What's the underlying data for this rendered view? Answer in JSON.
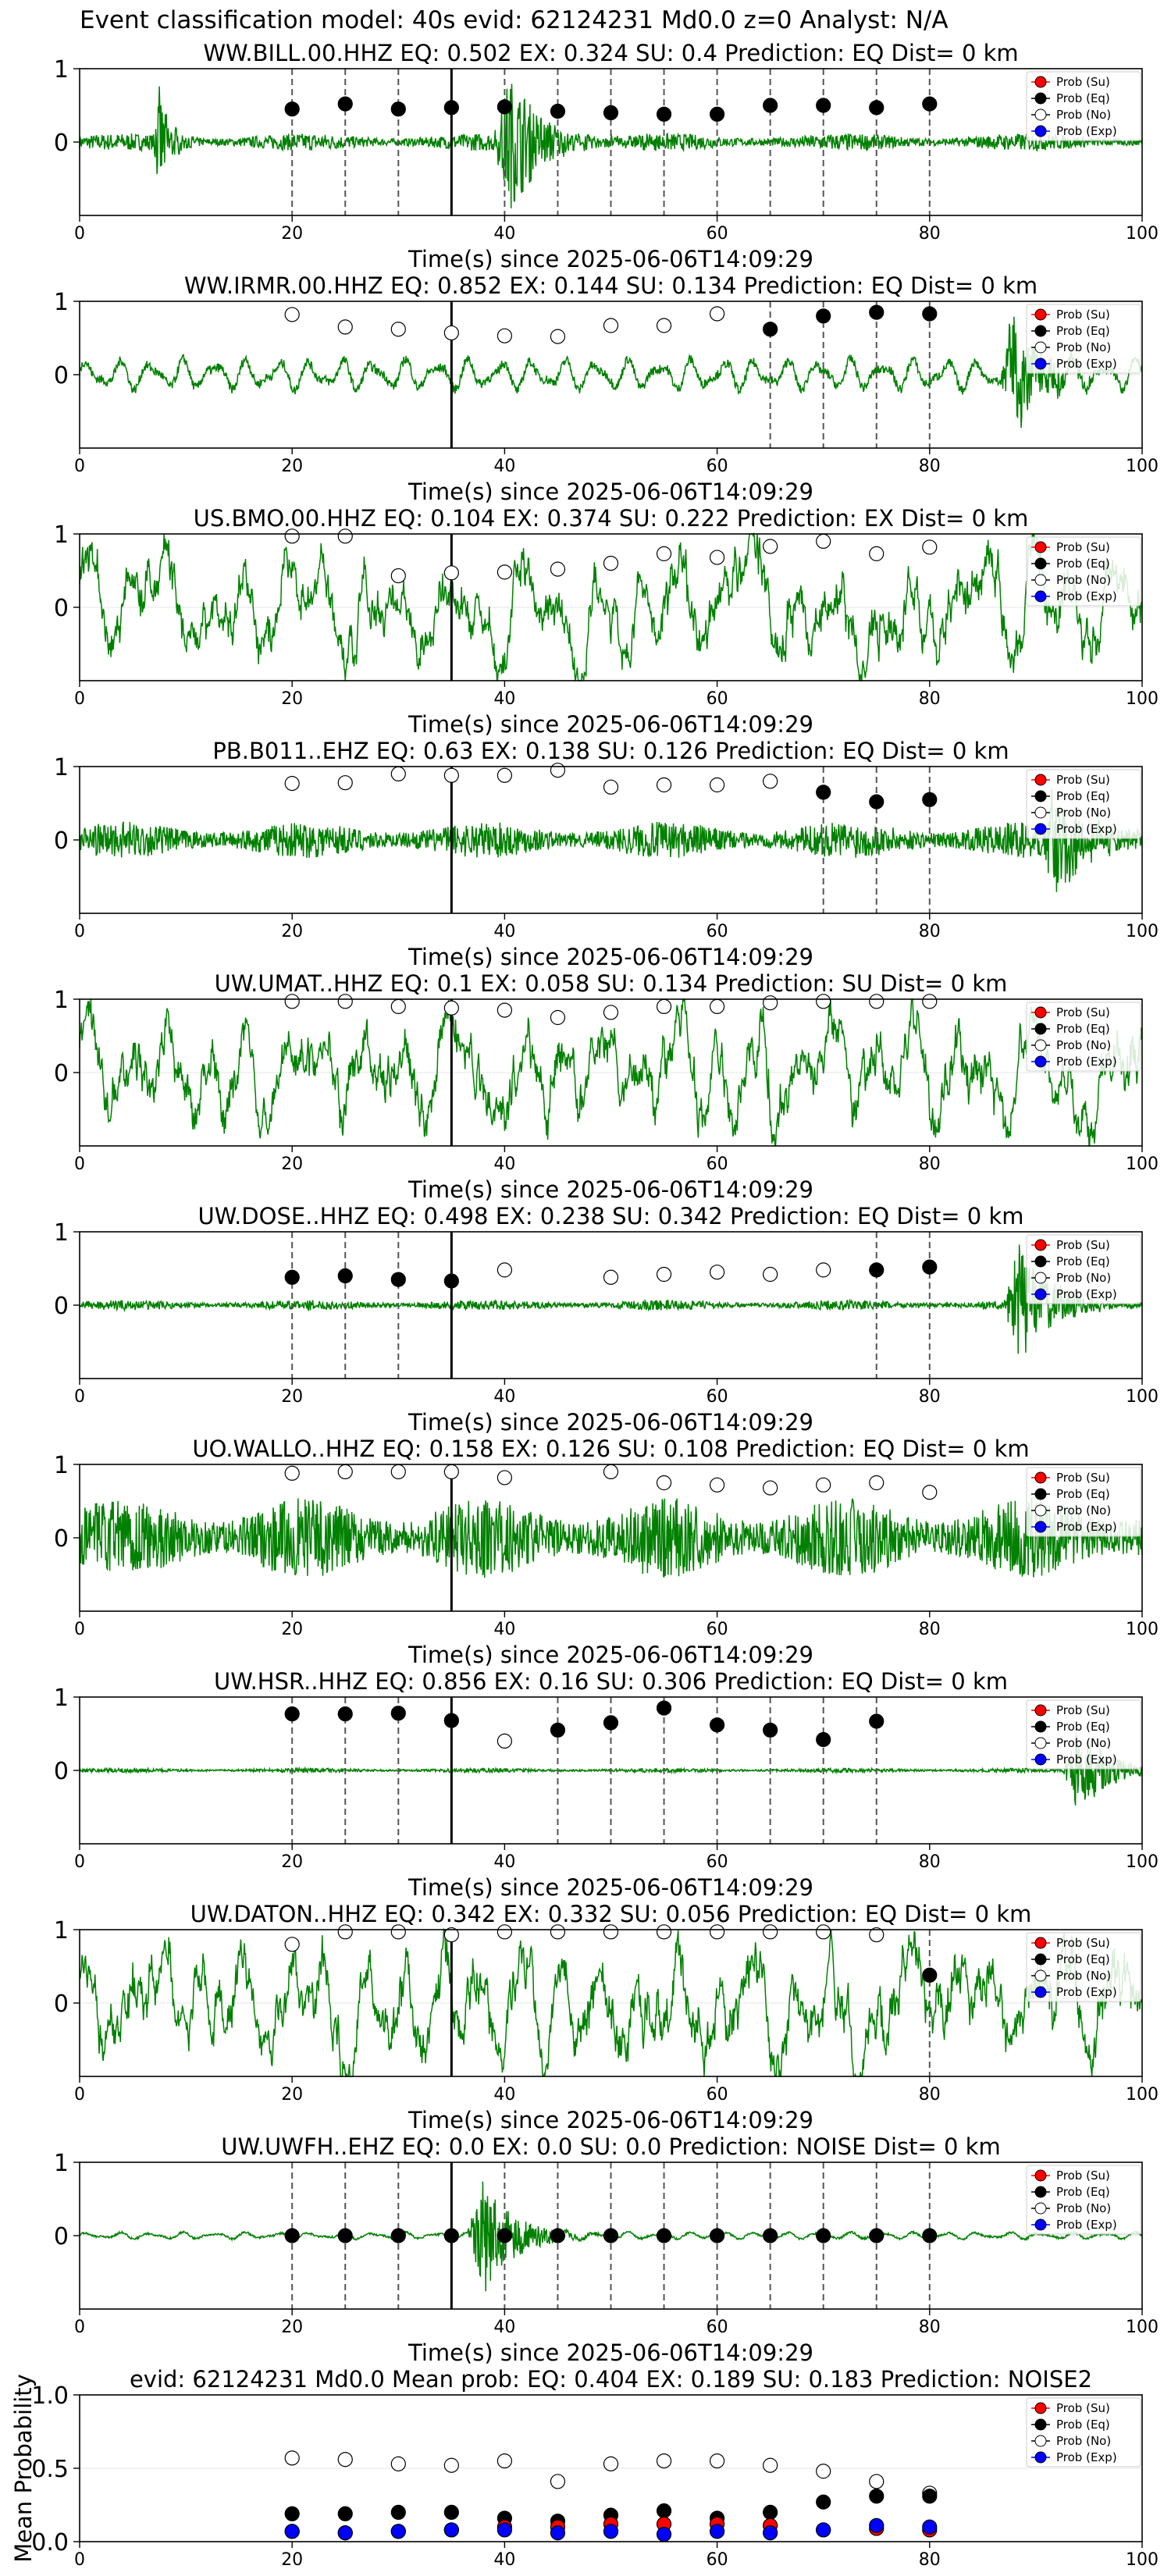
{
  "figure": {
    "title": "Event classification model: 40s evid: 62124231 Md0.0 z=0 Analyst: N/A"
  },
  "legend_labels": [
    "Prob (Su)",
    "Prob (Eq)",
    "Prob (No)",
    "Prob (Exp)"
  ],
  "colors": {
    "waveform": "#008000",
    "su": "#ff0000",
    "eq": "#000000",
    "no": "#ffffff",
    "exp": "#0000ff",
    "window_line": "#555555",
    "pick_line": "#000000"
  },
  "chart_data": [
    {
      "type": "line",
      "title": "WW.BILL.00.HHZ   EQ: 0.502  EX: 0.324  SU: 0.4   Prediction: EQ    Dist= 0 km",
      "xlabel": "Time(s) since 2025-06-06T14:09:29",
      "ylabel": "",
      "xlim": [
        0,
        100
      ],
      "ylim": [
        -1,
        1
      ],
      "xticks": [
        "0",
        "20",
        "40",
        "60",
        "80",
        "100"
      ],
      "yticks": [
        "1",
        "0"
      ],
      "legend": "top-right",
      "pick_time": 35,
      "windows": [
        20,
        25,
        30,
        35,
        40,
        45,
        50,
        55,
        60,
        65,
        70,
        75,
        80
      ],
      "marker": "eq",
      "probs": [
        0.45,
        0.52,
        0.45,
        0.47,
        0.48,
        0.42,
        0.4,
        0.38,
        0.38,
        0.5,
        0.5,
        0.47,
        0.52
      ],
      "trace": {
        "amp": 0.12,
        "burst_at": 40.5,
        "burst_amp": 0.95,
        "extra_burst": 7.5,
        "style": "hf"
      }
    },
    {
      "type": "line",
      "title": "WW.IRMR.00.HHZ   EQ: 0.852  EX: 0.144  SU: 0.134   Prediction: EQ    Dist= 0 km",
      "xlabel": "Time(s) since 2025-06-06T14:09:29",
      "ylabel": "",
      "xlim": [
        0,
        100
      ],
      "ylim": [
        -1,
        1
      ],
      "xticks": [
        "0",
        "20",
        "40",
        "60",
        "80",
        "100"
      ],
      "yticks": [
        "1",
        "0"
      ],
      "legend": "top-right",
      "pick_time": 35,
      "windows": [
        65,
        70,
        75,
        80
      ],
      "marker": "mixed",
      "probs": [
        0.82,
        0.65,
        0.62,
        0.57,
        0.53,
        0.52,
        0.67,
        0.67,
        0.83,
        0.62,
        0.8,
        0.85,
        0.83
      ],
      "marker_types": [
        "no",
        "no",
        "no",
        "no",
        "no",
        "no",
        "no",
        "no",
        "no",
        "eq",
        "eq",
        "eq",
        "eq"
      ],
      "trace": {
        "amp": 0.18,
        "burst_at": 88,
        "burst_amp": 0.8,
        "style": "swell"
      }
    },
    {
      "type": "line",
      "title": "US.BMO.00.HHZ   EQ: 0.104  EX: 0.374  SU: 0.222   Prediction: EX    Dist= 0 km",
      "xlabel": "Time(s) since 2025-06-06T14:09:29",
      "ylabel": "",
      "xlim": [
        0,
        100
      ],
      "ylim": [
        -1,
        1
      ],
      "xticks": [
        "0",
        "20",
        "40",
        "60",
        "80",
        "100"
      ],
      "yticks": [
        "1",
        "0"
      ],
      "legend": "top-right",
      "pick_time": 35,
      "windows": [],
      "marker": "no",
      "probs": [
        0.97,
        0.97,
        0.43,
        0.47,
        0.48,
        0.52,
        0.6,
        0.73,
        0.68,
        0.83,
        0.9,
        0.73,
        0.82
      ],
      "trace": {
        "amp": 0.55,
        "style": "lf"
      }
    },
    {
      "type": "line",
      "title": "PB.B011..EHZ   EQ: 0.63  EX: 0.138  SU: 0.126   Prediction: EQ    Dist= 0 km",
      "xlabel": "Time(s) since 2025-06-06T14:09:29",
      "ylabel": "",
      "xlim": [
        0,
        100
      ],
      "ylim": [
        -1,
        1
      ],
      "xticks": [
        "0",
        "20",
        "40",
        "60",
        "80",
        "100"
      ],
      "yticks": [
        "1",
        "0"
      ],
      "legend": "top-right",
      "pick_time": 35,
      "windows": [
        70,
        75,
        80
      ],
      "marker": "mixed",
      "probs": [
        0.77,
        0.78,
        0.9,
        0.88,
        0.88,
        0.95,
        0.72,
        0.75,
        0.75,
        0.8,
        0.65,
        0.52,
        0.55
      ],
      "marker_types": [
        "no",
        "no",
        "no",
        "no",
        "no",
        "no",
        "no",
        "no",
        "no",
        "no",
        "eq",
        "eq",
        "eq"
      ],
      "trace": {
        "amp": 0.25,
        "burst_at": 92,
        "burst_amp": 0.8,
        "style": "hf"
      }
    },
    {
      "type": "line",
      "title": "UW.UMAT..HHZ   EQ: 0.1  EX: 0.058  SU: 0.134   Prediction: SU    Dist= 0 km",
      "xlabel": "Time(s) since 2025-06-06T14:09:29",
      "ylabel": "",
      "xlim": [
        0,
        100
      ],
      "ylim": [
        -1,
        1
      ],
      "xticks": [
        "0",
        "20",
        "40",
        "60",
        "80",
        "100"
      ],
      "yticks": [
        "1",
        "0"
      ],
      "legend": "top-right",
      "pick_time": 35,
      "windows": [],
      "marker": "no",
      "probs": [
        0.97,
        0.97,
        0.9,
        0.88,
        0.85,
        0.75,
        0.82,
        0.9,
        0.9,
        0.95,
        0.97,
        0.97,
        0.97
      ],
      "trace": {
        "amp": 0.55,
        "style": "lf"
      }
    },
    {
      "type": "line",
      "title": "UW.DOSE..HHZ   EQ: 0.498  EX: 0.238  SU: 0.342   Prediction: EQ    Dist= 0 km",
      "xlabel": "Time(s) since 2025-06-06T14:09:29",
      "ylabel": "",
      "xlim": [
        0,
        100
      ],
      "ylim": [
        -1,
        1
      ],
      "xticks": [
        "0",
        "20",
        "40",
        "60",
        "80",
        "100"
      ],
      "yticks": [
        "1",
        "0"
      ],
      "legend": "top-right",
      "pick_time": 35,
      "windows": [
        20,
        25,
        30,
        35,
        75,
        80
      ],
      "marker": "mixed",
      "probs": [
        0.38,
        0.4,
        0.35,
        0.33,
        0.48,
        0.38,
        0.42,
        0.45,
        0.42,
        0.48,
        0.48,
        0.52
      ],
      "marker_times": [
        20,
        25,
        30,
        35,
        40,
        50,
        55,
        60,
        65,
        70,
        75,
        80
      ],
      "marker_types": [
        "eq",
        "eq",
        "eq",
        "eq",
        "no",
        "no",
        "no",
        "no",
        "no",
        "no",
        "eq",
        "eq"
      ],
      "trace": {
        "amp": 0.07,
        "burst_at": 88.5,
        "burst_amp": 0.9,
        "style": "hf"
      }
    },
    {
      "type": "line",
      "title": "UO.WALLO..HHZ   EQ: 0.158  EX: 0.126  SU: 0.108   Prediction: EQ    Dist= 0 km",
      "xlabel": "Time(s) since 2025-06-06T14:09:29",
      "ylabel": "",
      "xlim": [
        0,
        100
      ],
      "ylim": [
        -1,
        1
      ],
      "xticks": [
        "0",
        "20",
        "40",
        "60",
        "80",
        "100"
      ],
      "yticks": [
        "1",
        "0"
      ],
      "legend": "top-right",
      "pick_time": 35,
      "windows": [],
      "marker": "no",
      "probs": [
        0.88,
        0.9,
        0.9,
        0.9,
        0.82,
        0.9,
        0.75,
        0.72,
        0.68,
        0.72,
        0.75,
        0.62
      ],
      "marker_times": [
        20,
        25,
        30,
        35,
        40,
        50,
        55,
        60,
        65,
        70,
        75,
        80
      ],
      "trace": {
        "amp": 0.55,
        "style": "hf"
      }
    },
    {
      "type": "line",
      "title": "UW.HSR..HHZ   EQ: 0.856  EX: 0.16  SU: 0.306   Prediction: EQ    Dist= 0 km",
      "xlabel": "Time(s) since 2025-06-06T14:09:29",
      "ylabel": "",
      "xlim": [
        0,
        100
      ],
      "ylim": [
        -1,
        1
      ],
      "xticks": [
        "0",
        "20",
        "40",
        "60",
        "80",
        "100"
      ],
      "yticks": [
        "1",
        "0"
      ],
      "legend": "top-right",
      "pick_time": 35,
      "windows": [
        20,
        25,
        30,
        35,
        45,
        50,
        55,
        60,
        65,
        70,
        75
      ],
      "marker": "mixed",
      "probs": [
        0.77,
        0.77,
        0.78,
        0.68,
        0.4,
        0.55,
        0.65,
        0.85,
        0.62,
        0.55,
        0.42,
        0.67
      ],
      "marker_times": [
        20,
        25,
        30,
        35,
        40,
        45,
        50,
        55,
        60,
        65,
        70,
        75
      ],
      "marker_types": [
        "eq",
        "eq",
        "eq",
        "eq",
        "no",
        "eq",
        "eq",
        "eq",
        "eq",
        "eq",
        "eq",
        "eq"
      ],
      "trace": {
        "amp": 0.03,
        "burst_at": 94,
        "burst_amp": 0.6,
        "style": "hf"
      }
    },
    {
      "type": "line",
      "title": "UW.DATON..HHZ   EQ: 0.342  EX: 0.332  SU: 0.056   Prediction: EQ    Dist= 0 km",
      "xlabel": "Time(s) since 2025-06-06T14:09:29",
      "ylabel": "",
      "xlim": [
        0,
        100
      ],
      "ylim": [
        -1,
        1
      ],
      "xticks": [
        "0",
        "20",
        "40",
        "60",
        "80",
        "100"
      ],
      "yticks": [
        "1",
        "0"
      ],
      "legend": "top-right",
      "pick_time": 35,
      "windows": [
        80
      ],
      "marker": "mixed",
      "probs": [
        0.8,
        0.97,
        0.97,
        0.93,
        0.97,
        0.97,
        0.97,
        0.97,
        0.97,
        0.97,
        0.97,
        0.93,
        0.38
      ],
      "marker_types": [
        "no",
        "no",
        "no",
        "no",
        "no",
        "no",
        "no",
        "no",
        "no",
        "no",
        "no",
        "no",
        "eq"
      ],
      "trace": {
        "amp": 0.6,
        "style": "lf"
      }
    },
    {
      "type": "line",
      "title": "UW.UWFH..EHZ   EQ: 0.0  EX: 0.0  SU: 0.0   Prediction: NOISE    Dist= 0 km",
      "xlabel": "Time(s) since 2025-06-06T14:09:29",
      "ylabel": "",
      "xlim": [
        0,
        100
      ],
      "ylim": [
        -1,
        1
      ],
      "xticks": [
        "0",
        "20",
        "40",
        "60",
        "80",
        "100"
      ],
      "yticks": [
        "1",
        "0"
      ],
      "legend": "top-right",
      "pick_time": 35,
      "windows": [
        20,
        25,
        30,
        35,
        40,
        45,
        50,
        55,
        60,
        65,
        70,
        75,
        80
      ],
      "marker": "eq",
      "probs": [
        0,
        0,
        0,
        0,
        0,
        0,
        0,
        0,
        0,
        0,
        0,
        0,
        0
      ],
      "trace": {
        "amp": 0.04,
        "burst_at": 38,
        "burst_amp": 0.9,
        "style": "swell"
      }
    },
    {
      "type": "scatter",
      "title": "evid: 62124231  Md0.0   Mean prob:   EQ: 0.404  EX: 0.189  SU: 0.183   Prediction: NOISE2",
      "xlabel": "",
      "ylabel": "Mean Probability",
      "xlim": [
        0,
        100
      ],
      "ylim": [
        0,
        1
      ],
      "xticks": [
        "0",
        "20",
        "40",
        "60",
        "80",
        "100"
      ],
      "yticks": [
        "0.0",
        "0.5",
        "1.0"
      ],
      "legend": "top-right",
      "x": [
        20,
        25,
        30,
        35,
        40,
        45,
        50,
        55,
        60,
        65,
        70,
        75,
        80
      ],
      "series": [
        {
          "name": "Prob (Su)",
          "key": "su",
          "values": [
            0.07,
            0.06,
            0.07,
            0.08,
            0.1,
            0.1,
            0.12,
            0.12,
            0.12,
            0.11,
            0.08,
            0.09,
            0.08
          ]
        },
        {
          "name": "Prob (Eq)",
          "key": "eq",
          "values": [
            0.19,
            0.19,
            0.2,
            0.2,
            0.16,
            0.14,
            0.18,
            0.21,
            0.16,
            0.2,
            0.27,
            0.31,
            0.31
          ]
        },
        {
          "name": "Prob (No)",
          "key": "no",
          "values": [
            0.57,
            0.56,
            0.53,
            0.52,
            0.55,
            0.41,
            0.53,
            0.55,
            0.55,
            0.52,
            0.48,
            0.41,
            0.33
          ]
        },
        {
          "name": "Prob (Exp)",
          "key": "exp",
          "values": [
            0.07,
            0.06,
            0.07,
            0.08,
            0.08,
            0.06,
            0.07,
            0.05,
            0.07,
            0.06,
            0.08,
            0.11,
            0.1
          ]
        }
      ]
    }
  ]
}
